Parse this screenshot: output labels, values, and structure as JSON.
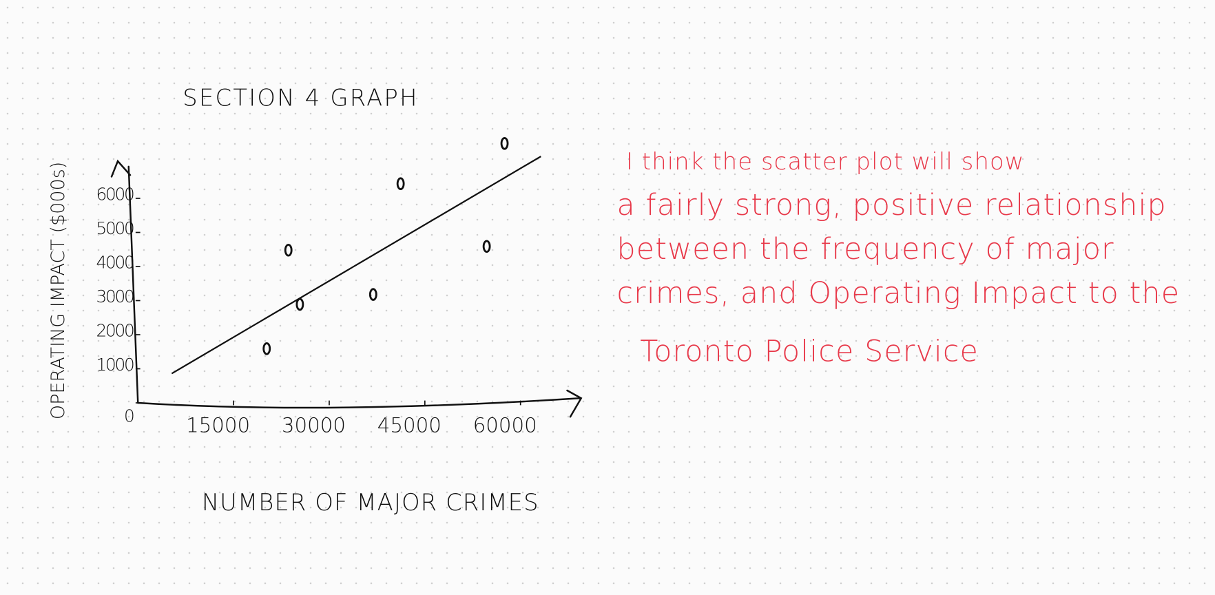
{
  "chart_data": {
    "type": "scatter",
    "title": "SECTION 4 GRAPH",
    "x_label": "NUMBER OF MAJOR CRIMES",
    "y_label": "OPERATING IMPACT ($000s)",
    "x": [
      20200,
      23600,
      25400,
      36900,
      41200,
      54700,
      57500
    ],
    "y": [
      1590,
      4480,
      2890,
      3180,
      6430,
      4590,
      7610
    ],
    "color": "#111111",
    "xlim": [
      0,
      70000
    ],
    "ylim": [
      0,
      8000
    ],
    "xticks": [
      15000,
      30000,
      45000,
      60000
    ],
    "yticks": [
      0,
      1000,
      2000,
      3000,
      4000,
      5000,
      6000
    ],
    "trend_line": {
      "x": [
        5300,
        63200
      ],
      "y": [
        860,
        7230
      ]
    },
    "annotation": [
      "I think the scatter plot will show",
      "a fairly strong, positive relationship",
      "between the frequency of major",
      "crimes, and Operating Impact to the",
      "Toronto Police Service"
    ],
    "annotation_color": "#e8394a"
  }
}
